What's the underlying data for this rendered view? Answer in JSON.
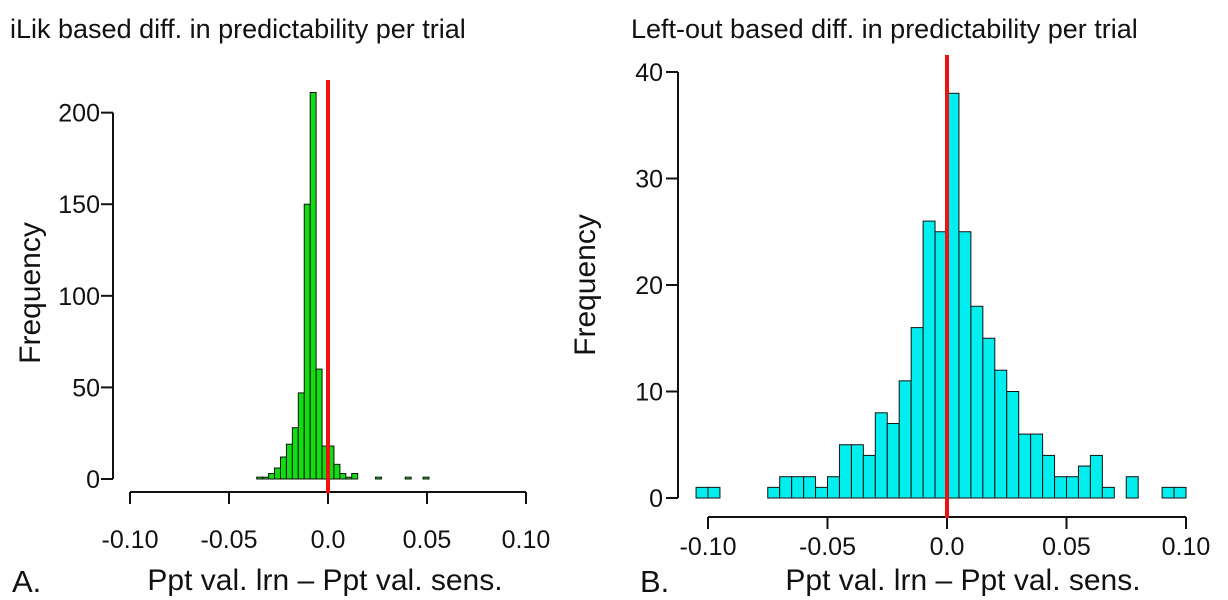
{
  "chart_data": [
    {
      "type": "bar",
      "panel": "A.",
      "title": "iLik based diff. in predictability per trial",
      "xlabel": "Ppt val. lrn  –  Ppt val. sens.",
      "ylabel": "Frequency",
      "xlim": [
        -0.1,
        0.1
      ],
      "ylim": [
        0,
        220
      ],
      "xticks": [
        -0.1,
        -0.05,
        0.0,
        0.05,
        0.1
      ],
      "xtick_labels": [
        "-0.10",
        "-0.05",
        "0.0",
        "0.05",
        "0.10"
      ],
      "yticks": [
        0,
        50,
        100,
        150,
        200
      ],
      "ytick_labels": [
        "0",
        "50",
        "100",
        "150",
        "200"
      ],
      "bin_width": 0.003,
      "bin_starts": [
        -0.036,
        -0.033,
        -0.03,
        -0.027,
        -0.024,
        -0.021,
        -0.018,
        -0.015,
        -0.012,
        -0.009,
        -0.006,
        -0.003,
        0.0,
        0.003,
        0.006,
        0.009,
        0.012,
        0.015,
        0.018,
        0.021,
        0.024,
        0.027,
        0.03,
        0.033,
        0.036,
        0.039,
        0.042,
        0.045,
        0.048,
        0.051,
        0.054,
        0.057,
        0.06,
        0.063,
        0.066
      ],
      "values": [
        1,
        1,
        3,
        6,
        12,
        19,
        28,
        47,
        150,
        211,
        60,
        18,
        18,
        8,
        3,
        1,
        3,
        0,
        0,
        0,
        1,
        0,
        0,
        0,
        0,
        1,
        0,
        0,
        1,
        0,
        0,
        0,
        0,
        0,
        0
      ],
      "bar_color": "#11dd11",
      "reference_line": {
        "x": 0.0,
        "color": "#ee1111"
      },
      "grid": false
    },
    {
      "type": "bar",
      "panel": "B.",
      "title": "Left-out based diff. in predictability per trial",
      "xlabel": "Ppt val. lrn  –  Ppt val. sens.",
      "ylabel": "Frequency",
      "xlim": [
        -0.1,
        0.1
      ],
      "ylim": [
        0,
        40
      ],
      "xticks": [
        -0.1,
        -0.05,
        0.0,
        0.05,
        0.1
      ],
      "xtick_labels": [
        "-0.10",
        "-0.05",
        "0.0",
        "0.05",
        "0.10"
      ],
      "yticks": [
        0,
        10,
        20,
        30,
        40
      ],
      "ytick_labels": [
        "0",
        "10",
        "20",
        "30",
        "40"
      ],
      "bin_width": 0.005,
      "bin_starts": [
        -0.105,
        -0.1,
        -0.095,
        -0.09,
        -0.085,
        -0.08,
        -0.075,
        -0.07,
        -0.065,
        -0.06,
        -0.055,
        -0.05,
        -0.045,
        -0.04,
        -0.035,
        -0.03,
        -0.025,
        -0.02,
        -0.015,
        -0.01,
        -0.005,
        0.0,
        0.005,
        0.01,
        0.015,
        0.02,
        0.025,
        0.03,
        0.035,
        0.04,
        0.045,
        0.05,
        0.055,
        0.06,
        0.065,
        0.07,
        0.075,
        0.08,
        0.085,
        0.09,
        0.095
      ],
      "values": [
        1,
        1,
        0,
        0,
        0,
        0,
        1,
        2,
        2,
        2,
        1,
        2,
        5,
        5,
        4,
        8,
        7,
        11,
        16,
        26,
        25,
        38,
        25,
        18,
        15,
        12,
        10,
        6,
        6,
        4,
        2,
        2,
        3,
        4,
        1,
        0,
        2,
        0,
        0,
        1,
        1
      ],
      "bar_color": "#00eeee",
      "reference_line": {
        "x": 0.0,
        "color": "#ee1111"
      },
      "grid": false
    }
  ]
}
